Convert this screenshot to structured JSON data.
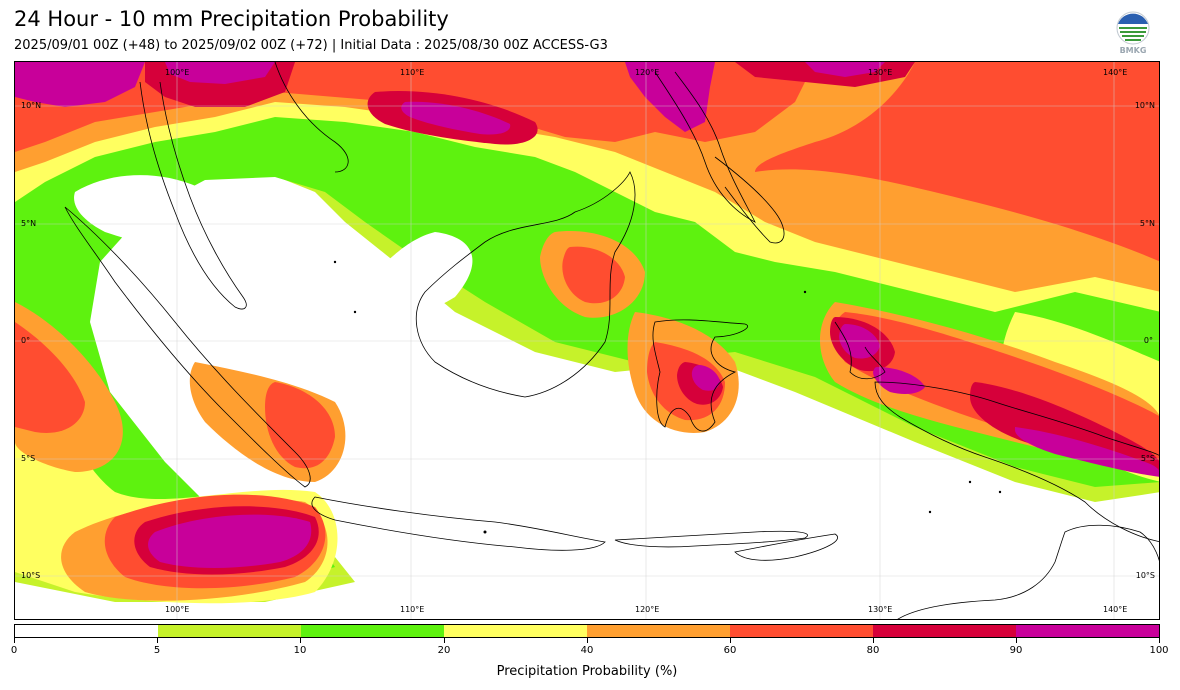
{
  "header": {
    "title": "24 Hour - 10 mm Precipitation Probability",
    "subtitle": "2025/09/01 00Z (+48) to 2025/09/02 00Z (+72) | Initial Data : 2025/08/30 00Z ACCESS-G3",
    "logo_text": "BMKG"
  },
  "map": {
    "lon_labels": [
      "100°E",
      "110°E",
      "120°E",
      "130°E",
      "140°E"
    ],
    "lat_labels": [
      "10°N",
      "5°N",
      "0°",
      "5°S",
      "10°S"
    ],
    "extent": {
      "lon_min": 94,
      "lon_max": 143,
      "lat_min": -12.5,
      "lat_max": 12.0
    },
    "grid": true,
    "regions": [
      {
        "name": "indian-ocean-sw-high",
        "category": 90
      },
      {
        "name": "philippine-sea-high",
        "category": 80
      },
      {
        "name": "papua-high",
        "category": 90
      },
      {
        "name": "sulawesi-high",
        "category": 90
      },
      {
        "name": "java-flores-sea-low",
        "category": 0
      }
    ]
  },
  "colorbar": {
    "label": "Precipitation Probability (%)",
    "ticks": [
      "0",
      "5",
      "10",
      "20",
      "40",
      "60",
      "80",
      "90",
      "100"
    ],
    "colors": [
      "#ffffff",
      "#c6f22a",
      "#5ef20f",
      "#ffff60",
      "#ff9f30",
      "#ff4d30",
      "#d6003a",
      "#c8009a"
    ]
  },
  "colors": {
    "white": "#ffffff",
    "lime": "#c6f22a",
    "green": "#5ef20f",
    "yellow": "#ffff60",
    "orange": "#ff9f30",
    "red_orange": "#ff4d30",
    "crimson": "#d6003a",
    "magenta": "#c8009a"
  },
  "icons": {
    "logo": "bmkg-logo-icon"
  }
}
